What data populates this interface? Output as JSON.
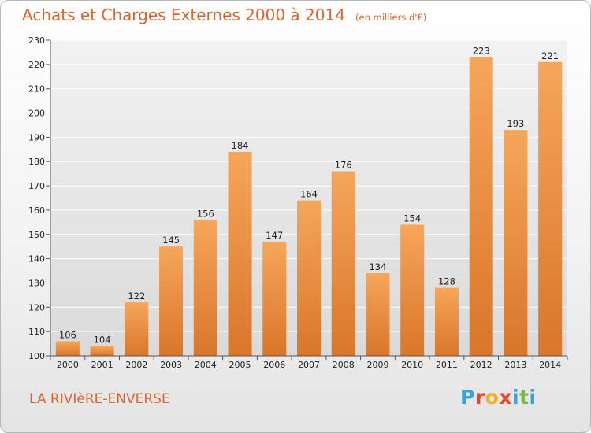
{
  "header": {
    "title": "Achats et Charges Externes 2000 à 2014",
    "unit": "(en milliers d'€)"
  },
  "footer": {
    "commune": "LA RIVIèRE-ENVERSE",
    "logo_letters": [
      "P",
      "r",
      "o",
      "x",
      "i",
      "t",
      "i"
    ],
    "logo_colors": [
      "#3aa0da",
      "#e8452c",
      "#f2b01e",
      "#e8452c",
      "#3aa0da",
      "#7cb740",
      "#3aa0da"
    ]
  },
  "colors": {
    "bar_light": "#f6a65a",
    "bar_dark": "#d9762a",
    "text_accent": "#d9652e"
  },
  "chart_data": {
    "type": "bar",
    "title": "Achats et Charges Externes 2000 à 2014",
    "subtitle": "(en milliers d'€)",
    "xlabel": "",
    "ylabel": "",
    "categories": [
      "2000",
      "2001",
      "2002",
      "2003",
      "2004",
      "2005",
      "2006",
      "2007",
      "2008",
      "2009",
      "2010",
      "2011",
      "2012",
      "2013",
      "2014"
    ],
    "values": [
      106,
      104,
      122,
      145,
      156,
      184,
      147,
      164,
      176,
      134,
      154,
      128,
      223,
      193,
      221
    ],
    "ylim": [
      100,
      230
    ],
    "yticks": [
      100,
      110,
      120,
      130,
      140,
      150,
      160,
      170,
      180,
      190,
      200,
      210,
      220,
      230
    ],
    "grid": true,
    "data_labels": true
  }
}
